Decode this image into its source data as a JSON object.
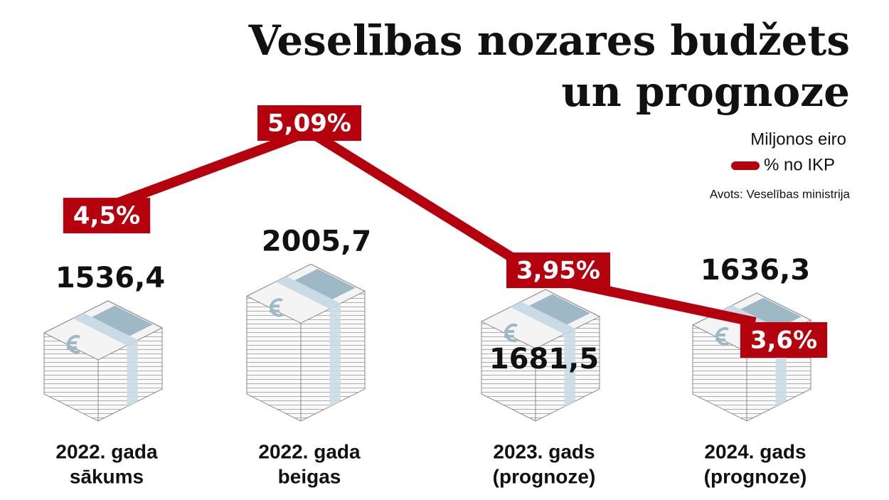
{
  "chart_data": {
    "type": "line",
    "title": [
      "Veselības nozares budžets",
      "un prognoze"
    ],
    "source": "Avots: Veselības ministrija",
    "categories": [
      [
        "2022. gada",
        "sākums"
      ],
      [
        "2022. gada",
        "beigas"
      ],
      [
        "2023. gads",
        "(prognoze)"
      ],
      [
        "2024. gads",
        "(prognoze)"
      ]
    ],
    "series": [
      {
        "name": "Miljonos eiro",
        "color": "#9fb8c6",
        "values": [
          1536.4,
          2005.7,
          1681.5,
          1636.3
        ],
        "value_labels": [
          "1536,4",
          "2005,7",
          "1681,5",
          "1636,3"
        ]
      },
      {
        "name": "% no IKP",
        "color": "#b5000d",
        "values": [
          4.5,
          5.09,
          3.95,
          3.6
        ],
        "value_labels": [
          "4,5%",
          "5,09%",
          "3,95%",
          "3,6%"
        ]
      }
    ]
  }
}
